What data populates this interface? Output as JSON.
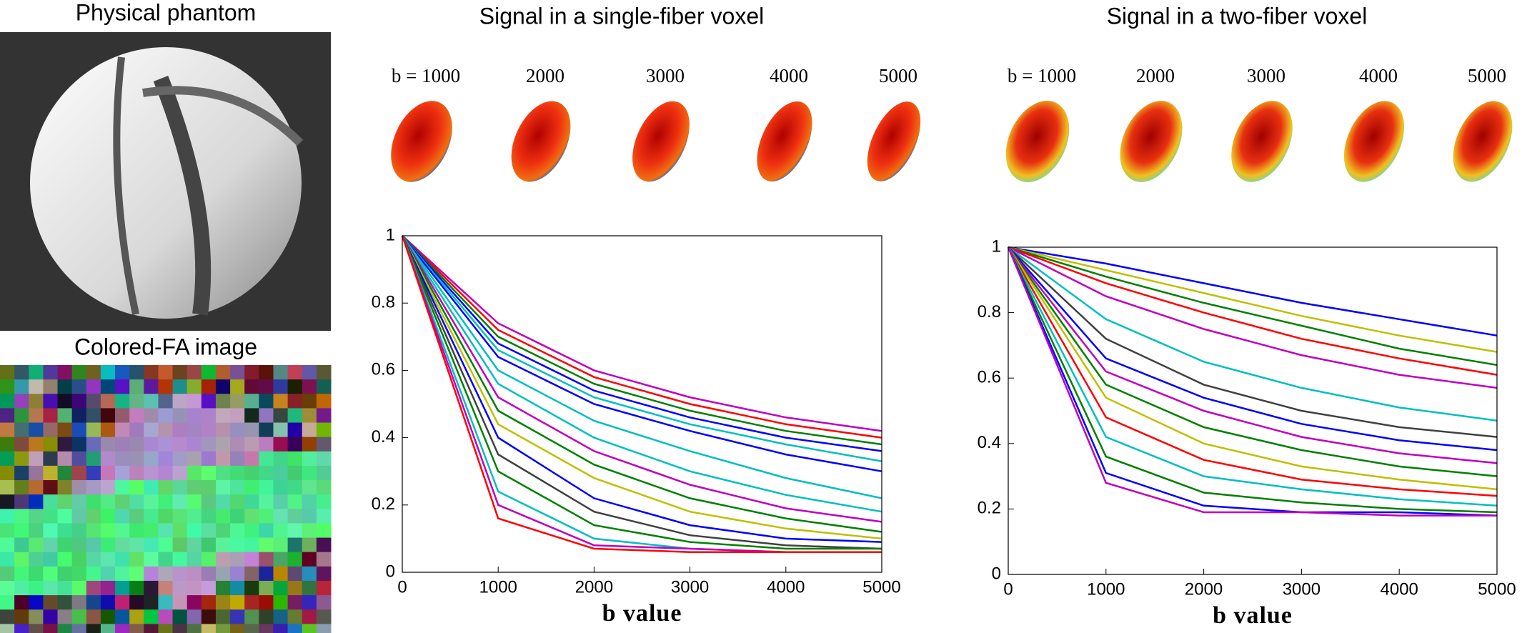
{
  "panels": {
    "phantom_caption": "Physical phantom",
    "fa_caption": "Colored-FA image"
  },
  "chart_data": [
    {
      "type": "line",
      "title": "Signal in a single-fiber voxel",
      "xlabel": "b value",
      "glyph_labels": [
        "b = 1000",
        "2000",
        "3000",
        "4000",
        "5000"
      ],
      "x": [
        0,
        1000,
        2000,
        3000,
        4000,
        5000
      ],
      "xlim": [
        0,
        5000
      ],
      "ylim": [
        0,
        1
      ],
      "xticks": [
        0,
        1000,
        2000,
        3000,
        4000,
        5000
      ],
      "yticks": [
        0,
        0.2,
        0.4,
        0.6,
        0.8,
        1
      ],
      "series": [
        {
          "color": "#bf00bf",
          "values": [
            1,
            0.74,
            0.6,
            0.52,
            0.46,
            0.42
          ]
        },
        {
          "color": "#ff0000",
          "values": [
            1,
            0.72,
            0.58,
            0.5,
            0.44,
            0.4
          ]
        },
        {
          "color": "#008000",
          "values": [
            1,
            0.7,
            0.56,
            0.48,
            0.42,
            0.38
          ]
        },
        {
          "color": "#0000ff",
          "values": [
            1,
            0.68,
            0.54,
            0.46,
            0.4,
            0.36
          ]
        },
        {
          "color": "#00bfbf",
          "values": [
            1,
            0.66,
            0.52,
            0.44,
            0.38,
            0.33
          ]
        },
        {
          "color": "#0000ff",
          "values": [
            1,
            0.64,
            0.5,
            0.42,
            0.35,
            0.3
          ]
        },
        {
          "color": "#00bfbf",
          "values": [
            1,
            0.6,
            0.45,
            0.36,
            0.28,
            0.22
          ]
        },
        {
          "color": "#00bfbf",
          "values": [
            1,
            0.56,
            0.4,
            0.3,
            0.23,
            0.18
          ]
        },
        {
          "color": "#bf00bf",
          "values": [
            1,
            0.52,
            0.36,
            0.26,
            0.19,
            0.15
          ]
        },
        {
          "color": "#008000",
          "values": [
            1,
            0.48,
            0.32,
            0.22,
            0.16,
            0.12
          ]
        },
        {
          "color": "#bfbf00",
          "values": [
            1,
            0.44,
            0.28,
            0.18,
            0.13,
            0.1
          ]
        },
        {
          "color": "#0000ff",
          "values": [
            1,
            0.4,
            0.22,
            0.14,
            0.1,
            0.09
          ]
        },
        {
          "color": "#404040",
          "values": [
            1,
            0.35,
            0.18,
            0.11,
            0.08,
            0.07
          ]
        },
        {
          "color": "#008000",
          "values": [
            1,
            0.3,
            0.14,
            0.09,
            0.07,
            0.07
          ]
        },
        {
          "color": "#00bfbf",
          "values": [
            1,
            0.24,
            0.1,
            0.07,
            0.06,
            0.06
          ]
        },
        {
          "color": "#bf00bf",
          "values": [
            1,
            0.2,
            0.08,
            0.07,
            0.06,
            0.06
          ]
        },
        {
          "color": "#ff0000",
          "values": [
            1,
            0.16,
            0.07,
            0.06,
            0.06,
            0.06
          ]
        }
      ]
    },
    {
      "type": "line",
      "title": "Signal in a two-fiber voxel",
      "xlabel": "b value",
      "glyph_labels": [
        "b = 1000",
        "2000",
        "3000",
        "4000",
        "5000"
      ],
      "x": [
        0,
        1000,
        2000,
        3000,
        4000,
        5000
      ],
      "xlim": [
        0,
        5000
      ],
      "ylim": [
        0,
        1
      ],
      "xticks": [
        0,
        1000,
        2000,
        3000,
        4000,
        5000
      ],
      "yticks": [
        0,
        0.2,
        0.4,
        0.6,
        0.8,
        1
      ],
      "series": [
        {
          "color": "#0000ff",
          "values": [
            1,
            0.95,
            0.89,
            0.83,
            0.78,
            0.73
          ]
        },
        {
          "color": "#bfbf00",
          "values": [
            1,
            0.93,
            0.86,
            0.79,
            0.73,
            0.68
          ]
        },
        {
          "color": "#008000",
          "values": [
            1,
            0.91,
            0.83,
            0.76,
            0.69,
            0.64
          ]
        },
        {
          "color": "#ff0000",
          "values": [
            1,
            0.89,
            0.8,
            0.72,
            0.66,
            0.61
          ]
        },
        {
          "color": "#bf00bf",
          "values": [
            1,
            0.85,
            0.75,
            0.67,
            0.61,
            0.57
          ]
        },
        {
          "color": "#00bfbf",
          "values": [
            1,
            0.78,
            0.65,
            0.57,
            0.51,
            0.47
          ]
        },
        {
          "color": "#404040",
          "values": [
            1,
            0.72,
            0.58,
            0.5,
            0.45,
            0.42
          ]
        },
        {
          "color": "#0000ff",
          "values": [
            1,
            0.66,
            0.54,
            0.46,
            0.41,
            0.38
          ]
        },
        {
          "color": "#bf00bf",
          "values": [
            1,
            0.62,
            0.5,
            0.42,
            0.37,
            0.34
          ]
        },
        {
          "color": "#008000",
          "values": [
            1,
            0.58,
            0.45,
            0.38,
            0.33,
            0.3
          ]
        },
        {
          "color": "#bfbf00",
          "values": [
            1,
            0.54,
            0.4,
            0.33,
            0.29,
            0.26
          ]
        },
        {
          "color": "#ff0000",
          "values": [
            1,
            0.48,
            0.35,
            0.29,
            0.26,
            0.24
          ]
        },
        {
          "color": "#00bfbf",
          "values": [
            1,
            0.42,
            0.3,
            0.26,
            0.23,
            0.21
          ]
        },
        {
          "color": "#008000",
          "values": [
            1,
            0.36,
            0.25,
            0.22,
            0.2,
            0.19
          ]
        },
        {
          "color": "#0000ff",
          "values": [
            1,
            0.31,
            0.21,
            0.19,
            0.19,
            0.18
          ]
        },
        {
          "color": "#bf00bf",
          "values": [
            1,
            0.28,
            0.19,
            0.19,
            0.18,
            0.18
          ]
        }
      ]
    }
  ]
}
